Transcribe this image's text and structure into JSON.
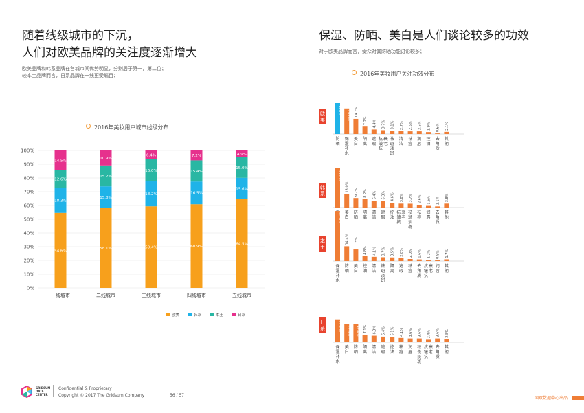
{
  "left": {
    "title_line1": "随着线级城市的下沉，",
    "title_line2": "人们对欧美品牌的关注度逐渐增大",
    "subtitle_line1": "欧美品牌和韩系品牌在各城市间优势明显，分别居于第一，第二位；",
    "subtitle_line2": "较本土品牌而言，日系品牌在一线更受瞩目；",
    "chart_title": "2016年美妆用户城市线级分布"
  },
  "right": {
    "title": "保湿、防晒、美白是人们谈论较多的功效",
    "subtitle": "对于欧美品牌而言，受众对其防晒功能讨论较多；",
    "chart_title": "2016年美妆用户关注功效分布"
  },
  "colors": {
    "欧美": "#f7a01c",
    "韩系": "#1fb3e8",
    "本土": "#29b7a3",
    "日系": "#e6318d",
    "bar_orange": "#ef7d35",
    "bar_blue": "#1fb3e8",
    "label_red": "#e8432e"
  },
  "chart_data": [
    {
      "type": "bar",
      "stacked": true,
      "title": "2016年美妆用户城市线级分布",
      "categories": [
        "一线城市",
        "二线城市",
        "三线城市",
        "四线城市",
        "五线城市"
      ],
      "series": [
        {
          "name": "欧美",
          "values": [
            54.6,
            58.1,
            59.4,
            60.9,
            64.5
          ],
          "labels": [
            "54.6%",
            "58.1%",
            "59.4%",
            "60.9%",
            "64.5%"
          ]
        },
        {
          "name": "韩系",
          "values": [
            18.3,
            15.8,
            18.2,
            16.5,
            15.6
          ],
          "labels": [
            "18.3%",
            "15.8%",
            "18.2%",
            "16.5%",
            "15.6%"
          ]
        },
        {
          "name": "本土",
          "values": [
            12.6,
            15.2,
            16.0,
            15.4,
            15.0
          ],
          "labels": [
            "12.6%",
            "15.2%",
            "16.0%",
            "15.4%",
            "15.0%"
          ]
        },
        {
          "name": "日系",
          "values": [
            14.5,
            10.9,
            6.4,
            7.2,
            4.9
          ],
          "labels": [
            "14.5%",
            "10.9%",
            "6.4%",
            "7.2%",
            "4.9%"
          ]
        }
      ],
      "y_ticks": [
        "0%",
        "10%",
        "20%",
        "30%",
        "40%",
        "50%",
        "60%",
        "70%",
        "80%",
        "90%",
        "100%"
      ],
      "ylim": [
        0,
        100
      ],
      "legend_position": "bottom-right"
    },
    {
      "type": "bar",
      "title": "欧美",
      "categories": [
        "防晒",
        "保湿补水",
        "美白",
        "隔离",
        "遮瑕",
        "抗皱抗衰老",
        "祛斑淡斑",
        "清洁",
        "祛痘",
        "润唇",
        "控油",
        "去角质",
        "其他"
      ],
      "values": [
        30.0,
        24.8,
        14.7,
        7.2,
        4.4,
        3.7,
        3.1,
        2.7,
        2.6,
        2.6,
        1.9,
        0.6,
        2.1
      ],
      "labels": [
        "30.0%",
        "24.8%",
        "14.7%",
        "7.2%",
        "4.4%",
        "3.7%",
        "3.1%",
        "2.7%",
        "2.6%",
        "2.6%",
        "1.9%",
        "0.6%",
        "2.1%"
      ],
      "highlight": 0
    },
    {
      "type": "bar",
      "title": "韩系",
      "categories": [
        "保湿补水",
        "美白",
        "防晒",
        "隔离",
        "清洁",
        "遮瑕",
        "控油",
        "抗皱抗衰老",
        "祛斑淡斑",
        "祛痘",
        "润唇",
        "去角质",
        "其他"
      ],
      "values": [
        38.2,
        13.0,
        9.2,
        8.2,
        6.4,
        6.3,
        4.6,
        3.8,
        3.7,
        2.6,
        1.6,
        1.1,
        3.8
      ],
      "labels": [
        "38.2%",
        "13.0%",
        "9.2%",
        "8.2%",
        "6.4%",
        "6.3%",
        "4.6%",
        "3.8%",
        "3.7%",
        "2.6%",
        "1.6%",
        "1.1%",
        "3.8%"
      ]
    },
    {
      "type": "bar",
      "title": "本土",
      "categories": [
        "保湿补水",
        "防晒",
        "美白",
        "控油",
        "清洁",
        "祛斑淡斑",
        "隔离",
        "遮瑕",
        "祛痘",
        "去角质",
        "抗皱抗衰老",
        "润唇",
        "其他"
      ],
      "values": [
        48.6,
        14.4,
        11.3,
        4.8,
        4.1,
        3.7,
        3.5,
        2.8,
        2.0,
        1.6,
        1.2,
        0.8,
        1.7
      ],
      "labels": [
        "48.6%",
        "14.4%",
        "11.3%",
        "4.8%",
        "4.1%",
        "3.7%",
        "3.5%",
        "2.8%",
        "2.0%",
        "1.6%",
        "1.2%",
        "0.8%",
        "1.7%"
      ]
    },
    {
      "type": "bar",
      "title": "日系",
      "categories": [
        "保湿补水",
        "美白",
        "防晒",
        "隔离",
        "清洁",
        "遮瑕",
        "控油",
        "祛痘",
        "润唇",
        "祛斑淡斑",
        "抗皱抗衰老",
        "去角质",
        "其他"
      ],
      "values": [
        22.2,
        17.8,
        17.6,
        7.1,
        6.3,
        5.4,
        5.1,
        4.1,
        3.6,
        3.6,
        2.4,
        3.6,
        2.8
      ],
      "labels": [
        "22.2%",
        "17.8%",
        "17.6%",
        "7.1%",
        "6.3%",
        "5.4%",
        "5.1%",
        "4.1%",
        "3.6%",
        "3.6%",
        "2.4%",
        "3.6%",
        "2.8%"
      ]
    }
  ],
  "footer": {
    "logo_line1": "GRIDSUM",
    "logo_line2": "DATA",
    "logo_line3": "CENTER",
    "confidential": "Confidential & Proprietary",
    "copyright": "Copyright © 2017 The Gridsum Company",
    "page": "56 / 57",
    "brand": "国双数据中心出品"
  }
}
